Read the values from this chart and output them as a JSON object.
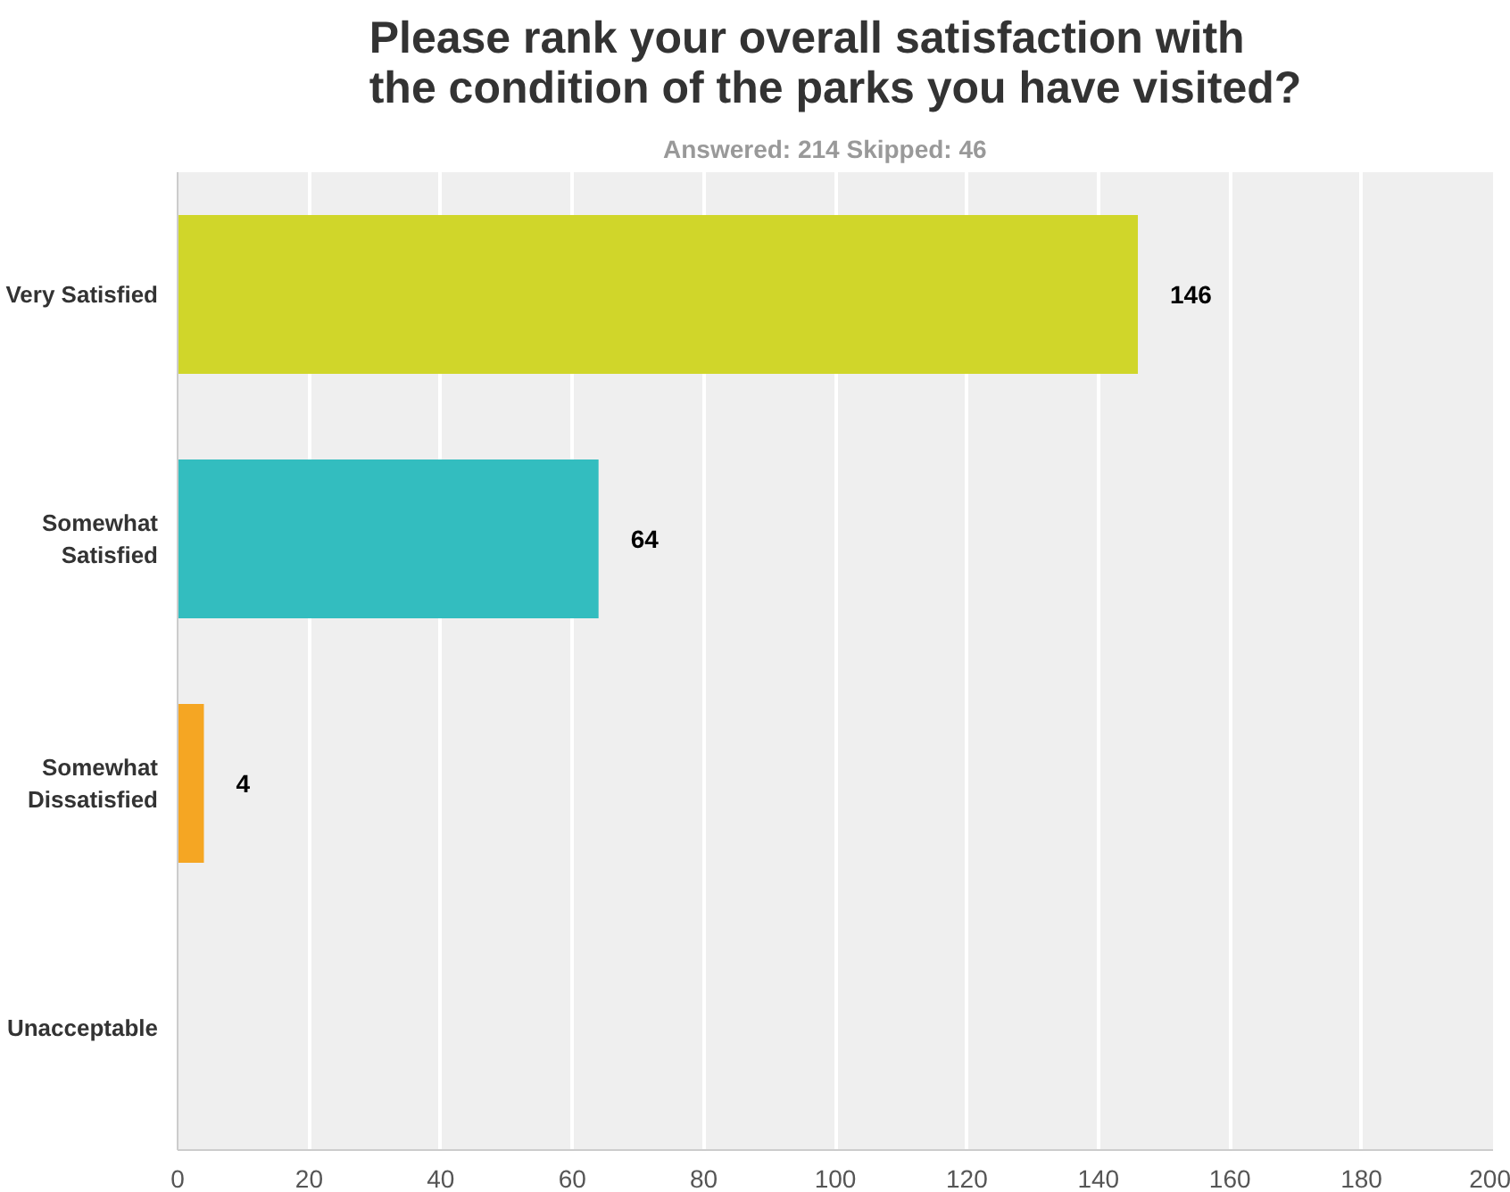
{
  "chart_data": {
    "type": "bar",
    "orientation": "horizontal",
    "title": "Please rank your overall satisfaction with\nthe condition of the parks you have visited?",
    "subtitle": "Answered: 214    Skipped: 46",
    "categories": [
      "Very Satisfied",
      "Somewhat Satisfied",
      "Somewhat Dissatisfied",
      "Unacceptable"
    ],
    "values": [
      146,
      64,
      4,
      0
    ],
    "colors": [
      "#d0d62a",
      "#33bdbf",
      "#f5a623",
      "#e2574c"
    ],
    "value_labels": [
      "146",
      "64",
      "4",
      null
    ],
    "xlim": [
      0,
      200
    ],
    "xticks": [
      0,
      20,
      40,
      60,
      80,
      100,
      120,
      140,
      160,
      180,
      200
    ],
    "grid": "x"
  }
}
